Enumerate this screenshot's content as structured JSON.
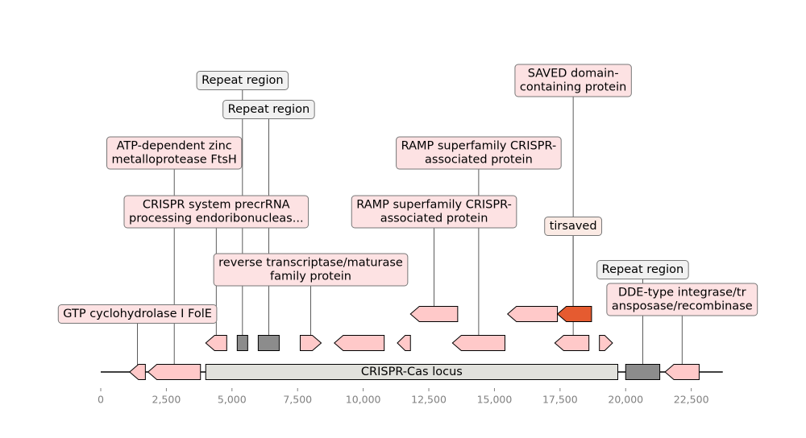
{
  "colors": {
    "background": "#ffffff",
    "gene_pink": "#ffc9c9",
    "gene_red": "#e55b30",
    "repeat_gray": "#8c8c8c",
    "locus_fill": "#e1e1dc",
    "label_pink": "#fde2e3",
    "label_gray": "#f1f1f1",
    "label_peach": "#fbeae4",
    "axis": "#808080",
    "outline": "#000000"
  },
  "locus_label": "CRISPR-Cas locus",
  "axis": {
    "min": 0,
    "max": 23800,
    "ticks": [
      {
        "value": 0,
        "label": "0"
      },
      {
        "value": 2500,
        "label": "2,500"
      },
      {
        "value": 5000,
        "label": "5,000"
      },
      {
        "value": 7500,
        "label": "7,500"
      },
      {
        "value": 10000,
        "label": "10,000"
      },
      {
        "value": 12500,
        "label": "12,500"
      },
      {
        "value": 15000,
        "label": "15,000"
      },
      {
        "value": 17500,
        "label": "17,500"
      },
      {
        "value": 20000,
        "label": "20,000"
      },
      {
        "value": 22500,
        "label": "22,500"
      }
    ]
  },
  "sequence": {
    "start": 0,
    "end": 23700
  },
  "crispr_locus": {
    "start": 4000,
    "end": 19700
  },
  "features": [
    {
      "id": "f1",
      "start": 1100,
      "end": 1700,
      "strand": -1,
      "row": 0,
      "kind": "gene",
      "fill": "#ffc9c9"
    },
    {
      "id": "f2",
      "start": 1800,
      "end": 3800,
      "strand": -1,
      "row": 0,
      "kind": "gene",
      "fill": "#ffc9c9"
    },
    {
      "id": "f3",
      "start": 20000,
      "end": 21300,
      "strand": 0,
      "row": 0,
      "kind": "repeat",
      "fill": "#8c8c8c"
    },
    {
      "id": "f4",
      "start": 21500,
      "end": 22800,
      "strand": -1,
      "row": 0,
      "kind": "gene",
      "fill": "#ffc9c9"
    },
    {
      "id": "f5",
      "start": 4000,
      "end": 4800,
      "strand": -1,
      "row": 1,
      "kind": "gene",
      "fill": "#ffc9c9"
    },
    {
      "id": "f6",
      "start": 5200,
      "end": 5600,
      "strand": 0,
      "row": 1,
      "kind": "repeat",
      "fill": "#8c8c8c"
    },
    {
      "id": "f7",
      "start": 6000,
      "end": 6800,
      "strand": 0,
      "row": 1,
      "kind": "repeat",
      "fill": "#8c8c8c"
    },
    {
      "id": "f8",
      "start": 7600,
      "end": 8400,
      "strand": 1,
      "row": 1,
      "kind": "gene",
      "fill": "#ffc9c9"
    },
    {
      "id": "f9",
      "start": 8900,
      "end": 10800,
      "strand": -1,
      "row": 1,
      "kind": "gene",
      "fill": "#ffc9c9"
    },
    {
      "id": "f10",
      "start": 11300,
      "end": 11800,
      "strand": -1,
      "row": 1,
      "kind": "gene",
      "fill": "#ffc9c9"
    },
    {
      "id": "f11",
      "start": 13400,
      "end": 15400,
      "strand": -1,
      "row": 1,
      "kind": "gene",
      "fill": "#ffc9c9"
    },
    {
      "id": "f12",
      "start": 17300,
      "end": 18600,
      "strand": -1,
      "row": 1,
      "kind": "gene",
      "fill": "#ffc9c9"
    },
    {
      "id": "f13",
      "start": 19000,
      "end": 19500,
      "strand": 1,
      "row": 1,
      "kind": "gene",
      "fill": "#ffc9c9"
    },
    {
      "id": "f14",
      "start": 11800,
      "end": 13600,
      "strand": -1,
      "row": 2,
      "kind": "gene",
      "fill": "#ffc9c9"
    },
    {
      "id": "f15",
      "start": 15500,
      "end": 17400,
      "strand": -1,
      "row": 2,
      "kind": "gene",
      "fill": "#ffc9c9"
    },
    {
      "id": "f16",
      "start": 17400,
      "end": 18700,
      "strand": -1,
      "row": 2,
      "kind": "gene",
      "fill": "#e55b30"
    }
  ],
  "annotations": [
    {
      "text": [
        "GTP cyclohydrolase I FolE"
      ],
      "pos": 1400,
      "level": 0,
      "feature_row": 0,
      "style": "pink"
    },
    {
      "text": [
        "ATP-dependent zinc",
        "metalloprotease FtsH"
      ],
      "pos": 2800,
      "level": 5,
      "feature_row": 0,
      "style": "pink"
    },
    {
      "text": [
        "CRISPR system precrRNA",
        "processing endoribonucleas..."
      ],
      "pos": 4400,
      "level": 3,
      "feature_row": 1,
      "style": "pink"
    },
    {
      "text": [
        "Repeat region"
      ],
      "pos": 5400,
      "level": 7,
      "feature_row": 1,
      "style": "gray"
    },
    {
      "text": [
        "Repeat region"
      ],
      "pos": 6400,
      "level": 6,
      "feature_row": 1,
      "style": "gray"
    },
    {
      "text": [
        "reverse transcriptase/maturase",
        "family protein"
      ],
      "pos": 8000,
      "level": 1,
      "feature_row": 1,
      "style": "pink"
    },
    {
      "text": [
        "RAMP superfamily CRISPR-",
        "associated protein"
      ],
      "pos": 12700,
      "level": 3,
      "feature_row": 2,
      "style": "pink"
    },
    {
      "text": [
        "RAMP superfamily CRISPR-",
        "associated protein"
      ],
      "pos": 14400,
      "level": 5,
      "feature_row": 1,
      "style": "pink"
    },
    {
      "text": [
        "SAVED domain-",
        "containing protein"
      ],
      "pos": 18000,
      "level": 7,
      "feature_row": 1,
      "style": "pink"
    },
    {
      "text": [
        "tirsaved"
      ],
      "pos": 18000,
      "level": 2,
      "feature_row": 2,
      "style": "peach"
    },
    {
      "text": [
        "Repeat region"
      ],
      "pos": 20650,
      "level": 1,
      "feature_row": 0,
      "style": "gray"
    },
    {
      "text": [
        "DDE-type integrase/tr",
        "ansposase/recombinase"
      ],
      "pos": 22150,
      "level": 0,
      "feature_row": 0,
      "style": "pink"
    }
  ]
}
